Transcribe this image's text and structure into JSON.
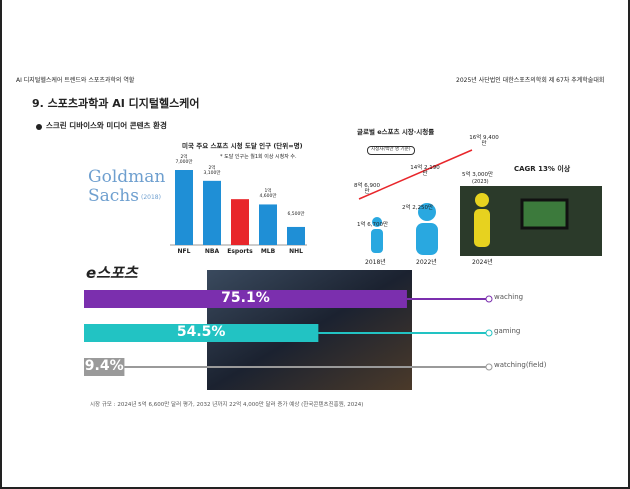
{
  "header": {
    "left": "AI 디지털헬스케어 트렌드와 스포츠과학의 역할",
    "right": "2025년 사단법인 대한스포츠의학회 제 67차 추계학술대회"
  },
  "title": "9. 스포츠과학과 AI 디지털헬스케어",
  "bullet": "스크린 디바이스와 미디어 콘텐츠 환경",
  "logo": {
    "line1": "Goldman",
    "line2": "Sachs",
    "year": "(2018)"
  },
  "us_chart": {
    "title": "미국 주요 스포츠 시청 도달 인구 (단위=명)",
    "note": "* 도달 인구는 월1회 이상 시청자 수.",
    "categories": [
      "NFL",
      "NBA",
      "Esports",
      "MLB",
      "NHL"
    ],
    "values": [
      27000,
      23100,
      16500,
      14600,
      6500
    ],
    "value_labels": [
      "2억 7,000만",
      "2억 3,100만",
      null,
      "1억 4,600만",
      "6,500만"
    ],
    "colors": [
      "#1f8fd6",
      "#1f8fd6",
      "#e8262b",
      "#1f8fd6",
      "#1f8fd6"
    ]
  },
  "global": {
    "title": "글로벌 e스포츠 시장·시청률",
    "box": "시청자(백만 명 기준)",
    "viewers": [
      "8억 6,900만",
      "14억 2,190만",
      "16억 9,400만"
    ],
    "market": [
      "1억 6,700만",
      "2억 2,250만",
      "5억 3,000만"
    ],
    "market_year": "(2023)",
    "years": [
      "2018년",
      "2022년",
      "2024년"
    ],
    "cagr": "CAGR 13% 이상"
  },
  "esports": {
    "logo": "e스포츠",
    "bars": [
      {
        "value": 75.1,
        "label": "75.1%",
        "name": "waching",
        "color": "#7b2fae"
      },
      {
        "value": 54.5,
        "label": "54.5%",
        "name": "gaming",
        "color": "#22c3c3"
      },
      {
        "value": 9.4,
        "label": "9.4%",
        "name": "watching(field)",
        "color": "#9a9a9a"
      }
    ]
  },
  "footnote": "시장 규모 : 2024년 5억 6,600만 달러 평가, 2032 년까지 22억 4,000만 달러 증가 예상 (한국콘텐츠진흥원, 2024)"
}
